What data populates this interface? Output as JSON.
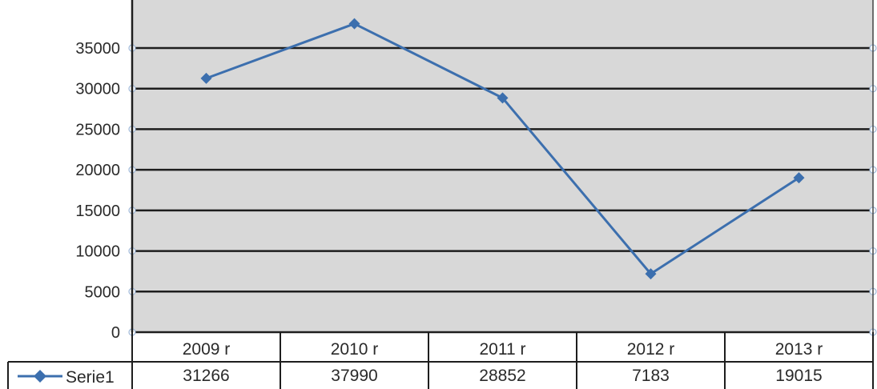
{
  "chart_data": {
    "type": "line",
    "categories": [
      "2009 r",
      "2010 r",
      "2011 r",
      "2012 r",
      "2013 r"
    ],
    "series": [
      {
        "name": "Serie1",
        "values": [
          31266,
          37990,
          28852,
          7183,
          19015
        ]
      }
    ],
    "ylim": [
      0,
      35000
    ],
    "yticks": [
      0,
      5000,
      10000,
      15000,
      20000,
      25000,
      30000,
      35000
    ],
    "grid": true,
    "legend": "data-table-left",
    "colors": {
      "plot_background": "#d8d8d8",
      "gridline": "#1e1e1e",
      "series": "#3c6fae"
    }
  }
}
